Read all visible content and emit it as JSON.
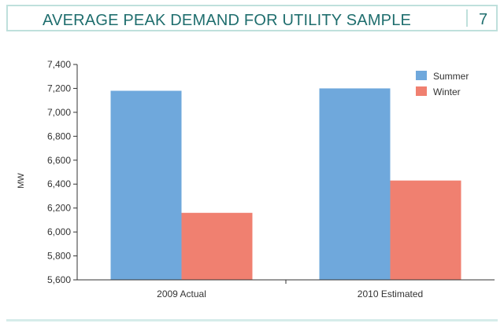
{
  "header": {
    "title": "AVERAGE PEAK DEMAND FOR UTILITY SAMPLE",
    "page_number": "7"
  },
  "colors": {
    "summer": "#6fa8dc",
    "winter": "#f08070",
    "title": "#1f6e6e",
    "border": "#bfe0dc"
  },
  "chart_data": {
    "type": "bar",
    "title": "",
    "xlabel": "",
    "ylabel": "MW",
    "categories": [
      "2009 Actual",
      "2010 Estimated"
    ],
    "series": [
      {
        "name": "Summer",
        "values": [
          7180,
          7200
        ]
      },
      {
        "name": "Winter",
        "values": [
          6160,
          6430
        ]
      }
    ],
    "ylim": [
      5600,
      7400
    ],
    "yticks": [
      5600,
      5800,
      6000,
      6200,
      6400,
      6600,
      6800,
      7000,
      7200,
      7400
    ],
    "ytick_labels": [
      "5,600",
      "5,800",
      "6,000",
      "6,200",
      "6,400",
      "6,600",
      "6,800",
      "7,000",
      "7,200",
      "7,400"
    ],
    "grid": false,
    "legend": "top-right"
  }
}
